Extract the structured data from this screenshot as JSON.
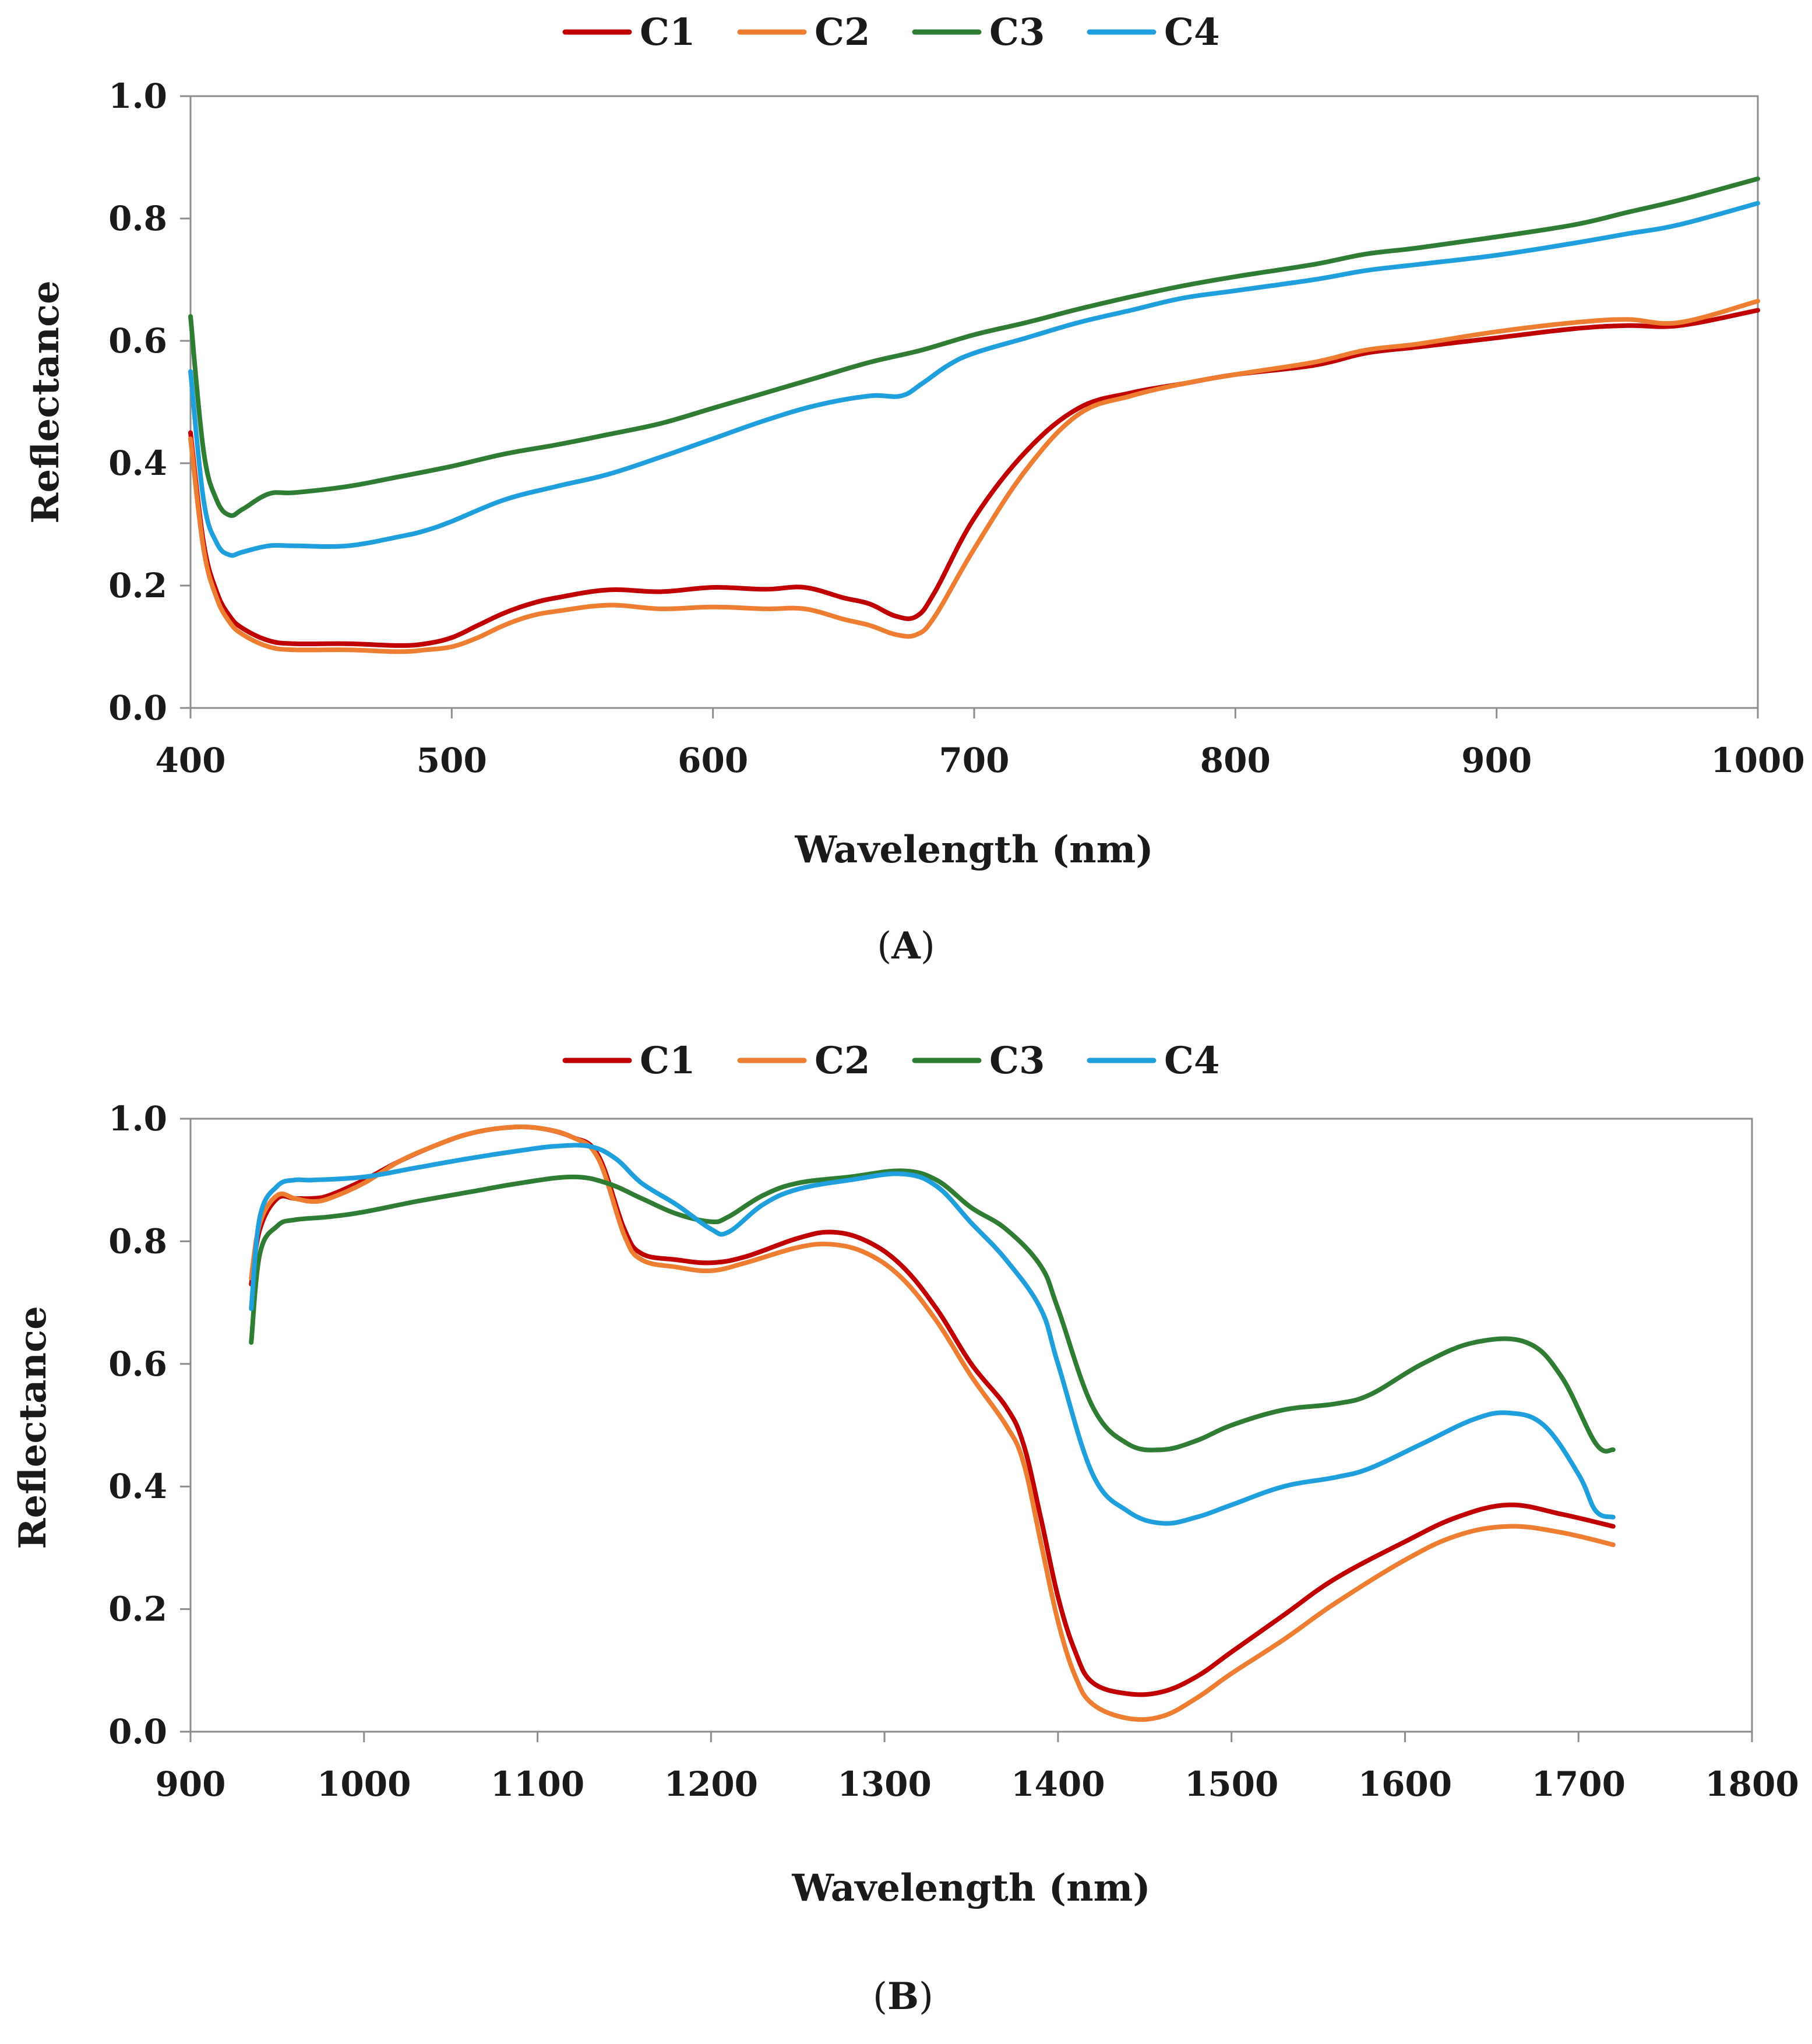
{
  "chart_data": [
    {
      "type": "line",
      "panel_label": "A",
      "xlabel": "Wavelength (nm)",
      "ylabel": "Reflectance",
      "xlim": [
        400,
        1000
      ],
      "ylim": [
        0.0,
        1.0
      ],
      "xticks": [
        "400",
        "500",
        "600",
        "700",
        "800",
        "900",
        "1000"
      ],
      "yticks": [
        "0.0",
        "0.2",
        "0.4",
        "0.6",
        "0.8",
        "1.0"
      ],
      "legend_position": "top",
      "series": [
        {
          "name": "C1",
          "color": "#c00000",
          "x": [
            400,
            405,
            410,
            415,
            420,
            430,
            440,
            460,
            480,
            490,
            500,
            510,
            520,
            530,
            540,
            560,
            580,
            600,
            620,
            635,
            650,
            660,
            670,
            678,
            685,
            700,
            720,
            740,
            760,
            780,
            800,
            830,
            850,
            870,
            900,
            930,
            950,
            970,
            1000
          ],
          "y": [
            0.45,
            0.27,
            0.19,
            0.15,
            0.13,
            0.11,
            0.105,
            0.105,
            0.102,
            0.105,
            0.115,
            0.135,
            0.155,
            0.17,
            0.18,
            0.193,
            0.19,
            0.197,
            0.194,
            0.197,
            0.18,
            0.17,
            0.15,
            0.15,
            0.19,
            0.31,
            0.42,
            0.49,
            0.515,
            0.53,
            0.545,
            0.56,
            0.58,
            0.59,
            0.605,
            0.62,
            0.625,
            0.625,
            0.65
          ]
        },
        {
          "name": "C2",
          "color": "#ed7d31",
          "x": [
            400,
            405,
            410,
            415,
            420,
            430,
            440,
            460,
            480,
            490,
            500,
            510,
            520,
            530,
            540,
            560,
            580,
            600,
            620,
            635,
            650,
            660,
            670,
            678,
            685,
            700,
            720,
            740,
            760,
            780,
            800,
            830,
            850,
            870,
            900,
            930,
            950,
            970,
            1000
          ],
          "y": [
            0.44,
            0.26,
            0.18,
            0.14,
            0.12,
            0.1,
            0.095,
            0.095,
            0.092,
            0.095,
            0.1,
            0.115,
            0.135,
            0.15,
            0.158,
            0.168,
            0.162,
            0.165,
            0.162,
            0.162,
            0.145,
            0.135,
            0.12,
            0.12,
            0.15,
            0.26,
            0.39,
            0.48,
            0.51,
            0.53,
            0.545,
            0.565,
            0.585,
            0.595,
            0.615,
            0.63,
            0.635,
            0.63,
            0.665
          ]
        },
        {
          "name": "C3",
          "color": "#2e7d32",
          "x": [
            400,
            405,
            410,
            415,
            420,
            430,
            440,
            460,
            480,
            500,
            520,
            540,
            560,
            580,
            600,
            620,
            640,
            660,
            680,
            700,
            720,
            740,
            760,
            780,
            800,
            830,
            850,
            870,
            900,
            930,
            950,
            970,
            1000
          ],
          "y": [
            0.64,
            0.42,
            0.34,
            0.315,
            0.325,
            0.35,
            0.352,
            0.362,
            0.378,
            0.395,
            0.415,
            0.43,
            0.447,
            0.465,
            0.49,
            0.515,
            0.54,
            0.565,
            0.585,
            0.61,
            0.63,
            0.652,
            0.672,
            0.69,
            0.705,
            0.725,
            0.742,
            0.752,
            0.77,
            0.79,
            0.81,
            0.83,
            0.865
          ]
        },
        {
          "name": "C4",
          "color": "#1fa0dc",
          "x": [
            400,
            405,
            410,
            415,
            420,
            430,
            440,
            460,
            480,
            490,
            500,
            520,
            540,
            560,
            580,
            600,
            620,
            640,
            660,
            672,
            680,
            690,
            700,
            720,
            740,
            760,
            780,
            800,
            830,
            850,
            870,
            900,
            930,
            950,
            970,
            1000
          ],
          "y": [
            0.55,
            0.34,
            0.27,
            0.25,
            0.255,
            0.265,
            0.265,
            0.265,
            0.28,
            0.29,
            0.305,
            0.34,
            0.362,
            0.382,
            0.41,
            0.44,
            0.47,
            0.495,
            0.51,
            0.51,
            0.53,
            0.56,
            0.58,
            0.605,
            0.63,
            0.65,
            0.67,
            0.682,
            0.7,
            0.715,
            0.725,
            0.74,
            0.76,
            0.775,
            0.79,
            0.825
          ]
        }
      ]
    },
    {
      "type": "line",
      "panel_label": "B",
      "xlabel": "Wavelength (nm)",
      "ylabel": "Reflectance",
      "xlim": [
        900,
        1800
      ],
      "ylim": [
        0.0,
        1.0
      ],
      "xticks": [
        "900",
        "1000",
        "1100",
        "1200",
        "1300",
        "1400",
        "1500",
        "1600",
        "1700",
        "1800"
      ],
      "yticks": [
        "0.0",
        "0.2",
        "0.4",
        "0.6",
        "0.8",
        "1.0"
      ],
      "legend_position": "top",
      "series": [
        {
          "name": "C1",
          "color": "#c00000",
          "x": [
            935,
            940,
            950,
            960,
            970,
            980,
            1000,
            1020,
            1040,
            1060,
            1080,
            1100,
            1120,
            1135,
            1150,
            1160,
            1180,
            1200,
            1220,
            1250,
            1270,
            1290,
            1310,
            1330,
            1350,
            1370,
            1380,
            1390,
            1400,
            1410,
            1420,
            1440,
            1460,
            1480,
            1500,
            1530,
            1560,
            1600,
            1630,
            1660,
            1690,
            1720
          ],
          "y": [
            0.73,
            0.82,
            0.87,
            0.87,
            0.87,
            0.875,
            0.9,
            0.93,
            0.955,
            0.975,
            0.985,
            0.985,
            0.97,
            0.94,
            0.82,
            0.78,
            0.77,
            0.765,
            0.775,
            0.805,
            0.815,
            0.8,
            0.76,
            0.69,
            0.6,
            0.53,
            0.47,
            0.35,
            0.22,
            0.13,
            0.08,
            0.062,
            0.065,
            0.09,
            0.13,
            0.19,
            0.25,
            0.31,
            0.35,
            0.37,
            0.355,
            0.335
          ]
        },
        {
          "name": "C2",
          "color": "#ed7d31",
          "x": [
            935,
            940,
            950,
            960,
            970,
            980,
            1000,
            1020,
            1040,
            1060,
            1080,
            1100,
            1120,
            1135,
            1150,
            1160,
            1180,
            1200,
            1220,
            1250,
            1270,
            1290,
            1310,
            1330,
            1350,
            1370,
            1380,
            1390,
            1400,
            1410,
            1420,
            1440,
            1460,
            1480,
            1500,
            1530,
            1560,
            1600,
            1630,
            1660,
            1690,
            1720
          ],
          "y": [
            0.74,
            0.83,
            0.875,
            0.87,
            0.865,
            0.87,
            0.895,
            0.93,
            0.955,
            0.975,
            0.985,
            0.985,
            0.97,
            0.935,
            0.81,
            0.77,
            0.758,
            0.752,
            0.765,
            0.79,
            0.795,
            0.78,
            0.74,
            0.67,
            0.58,
            0.5,
            0.44,
            0.31,
            0.18,
            0.09,
            0.045,
            0.022,
            0.025,
            0.055,
            0.095,
            0.15,
            0.21,
            0.28,
            0.32,
            0.335,
            0.325,
            0.305
          ]
        },
        {
          "name": "C3",
          "color": "#2e7d32",
          "x": [
            935,
            940,
            950,
            960,
            980,
            1000,
            1030,
            1060,
            1090,
            1120,
            1140,
            1160,
            1180,
            1200,
            1210,
            1230,
            1250,
            1280,
            1310,
            1330,
            1350,
            1370,
            1390,
            1400,
            1420,
            1440,
            1460,
            1480,
            1500,
            1530,
            1560,
            1580,
            1610,
            1640,
            1670,
            1690,
            1710,
            1720
          ],
          "y": [
            0.635,
            0.78,
            0.825,
            0.835,
            0.84,
            0.848,
            0.865,
            0.88,
            0.895,
            0.905,
            0.895,
            0.87,
            0.845,
            0.832,
            0.84,
            0.875,
            0.895,
            0.905,
            0.915,
            0.9,
            0.855,
            0.82,
            0.76,
            0.69,
            0.53,
            0.47,
            0.46,
            0.475,
            0.5,
            0.525,
            0.535,
            0.55,
            0.6,
            0.635,
            0.635,
            0.58,
            0.47,
            0.46
          ]
        },
        {
          "name": "C4",
          "color": "#1fa0dc",
          "x": [
            935,
            940,
            950,
            960,
            970,
            1000,
            1030,
            1060,
            1090,
            1110,
            1130,
            1145,
            1160,
            1180,
            1200,
            1210,
            1230,
            1250,
            1280,
            1310,
            1330,
            1350,
            1370,
            1390,
            1400,
            1420,
            1440,
            1460,
            1480,
            1500,
            1530,
            1560,
            1580,
            1610,
            1640,
            1660,
            1680,
            1700,
            1710,
            1720
          ],
          "y": [
            0.69,
            0.84,
            0.89,
            0.9,
            0.9,
            0.905,
            0.92,
            0.935,
            0.948,
            0.955,
            0.955,
            0.935,
            0.895,
            0.86,
            0.82,
            0.815,
            0.86,
            0.885,
            0.9,
            0.91,
            0.89,
            0.83,
            0.77,
            0.69,
            0.6,
            0.42,
            0.36,
            0.34,
            0.35,
            0.37,
            0.4,
            0.415,
            0.43,
            0.47,
            0.51,
            0.52,
            0.5,
            0.42,
            0.36,
            0.35
          ]
        }
      ]
    }
  ]
}
